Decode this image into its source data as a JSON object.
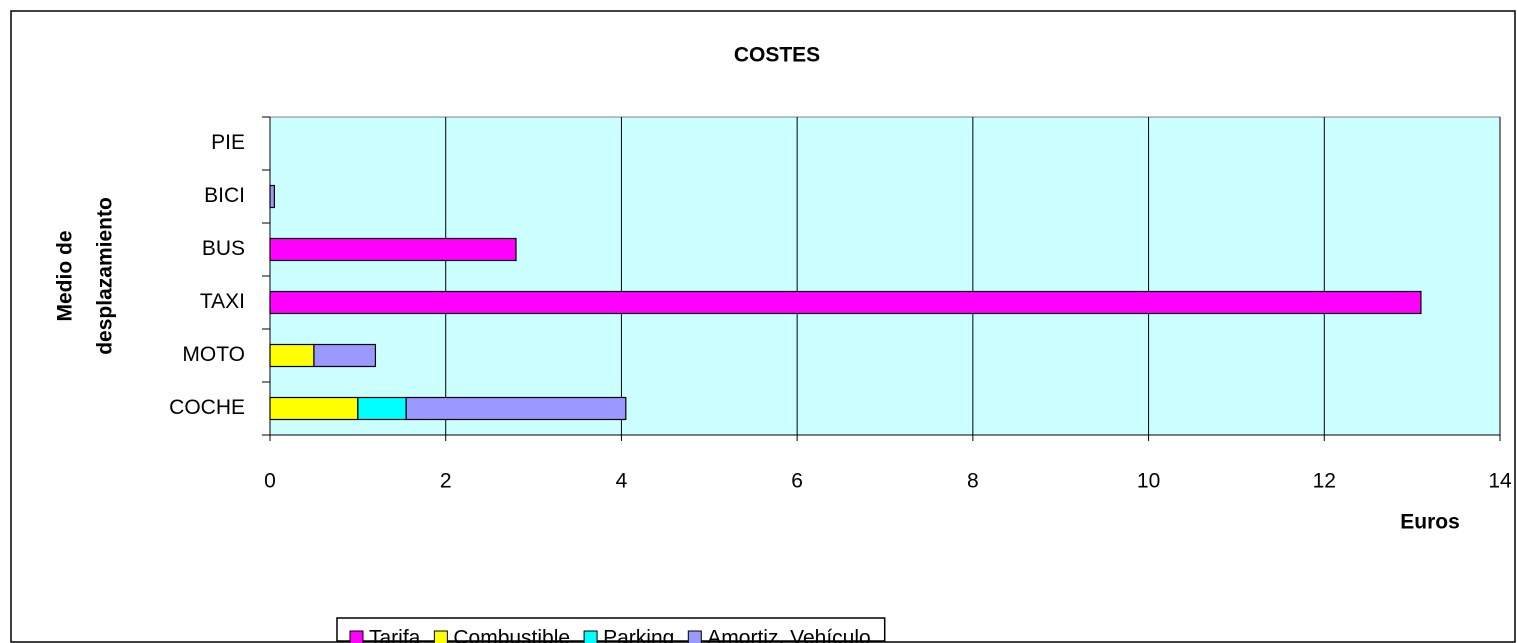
{
  "chart_data": {
    "type": "stacked_bar_horizontal",
    "title": "COSTES",
    "x_label": "Euros",
    "y_label": [
      "Medio de",
      "desplazamiento"
    ],
    "categories": [
      "PIE",
      "BICI",
      "BUS",
      "TAXI",
      "MOTO",
      "COCHE"
    ],
    "series": [
      {
        "name": "Tarifa",
        "color": "#ff00ff",
        "values": [
          0,
          0,
          2.8,
          13.1,
          0,
          0
        ]
      },
      {
        "name": "Combustible",
        "color": "#ffff00",
        "values": [
          0,
          0,
          0,
          0,
          0.5,
          1.0
        ]
      },
      {
        "name": "Parking",
        "color": "#00ffff",
        "values": [
          0,
          0,
          0,
          0,
          0,
          0.55
        ]
      },
      {
        "name": "Amortiz. Vehículo",
        "color": "#9999ff",
        "values": [
          0,
          0.05,
          0,
          0,
          0.7,
          2.5
        ]
      }
    ],
    "xlim": [
      0,
      14
    ],
    "xticks": [
      0,
      2,
      4,
      6,
      8,
      10,
      12,
      14
    ],
    "grid": true,
    "legend": "bottom",
    "plot_background": "#ccffff"
  }
}
